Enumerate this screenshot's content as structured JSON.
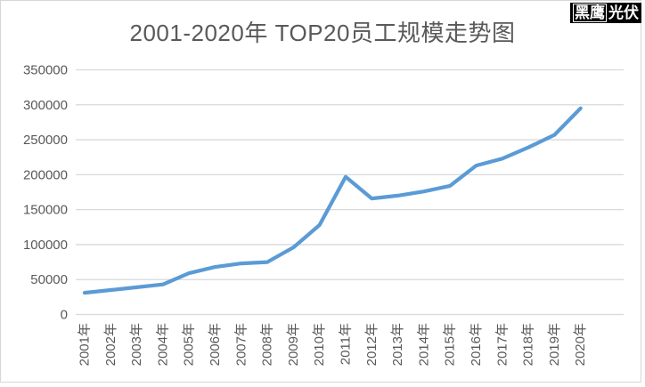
{
  "brand": {
    "name_primary": "黑鹰",
    "name_secondary": "光伏"
  },
  "chart_data": {
    "type": "line",
    "title": "2001-2020年 TOP20员工规模走势图",
    "categories": [
      "2001年",
      "2002年",
      "2003年",
      "2004年",
      "2005年",
      "2006年",
      "2007年",
      "2008年",
      "2009年",
      "2010年",
      "2011年",
      "2012年",
      "2013年",
      "2014年",
      "2015年",
      "2016年",
      "2017年",
      "2018年",
      "2019年",
      "2020年"
    ],
    "values": [
      31000,
      35000,
      39000,
      43000,
      59000,
      68000,
      73000,
      75000,
      96000,
      128000,
      197000,
      166000,
      170000,
      176000,
      184000,
      213000,
      223000,
      239000,
      257000,
      295000
    ],
    "xlabel": "",
    "ylabel": "",
    "ylim": [
      0,
      350000
    ],
    "ytick_interval": 50000,
    "ytick_labels": [
      "0",
      "50000",
      "100000",
      "150000",
      "200000",
      "250000",
      "300000",
      "350000"
    ],
    "grid": "horizontal",
    "legend_position": "none",
    "colors": {
      "line": "#5b9bd5",
      "gridline": "#d9d9d9",
      "axis_label": "#595959",
      "title": "#595959"
    }
  }
}
